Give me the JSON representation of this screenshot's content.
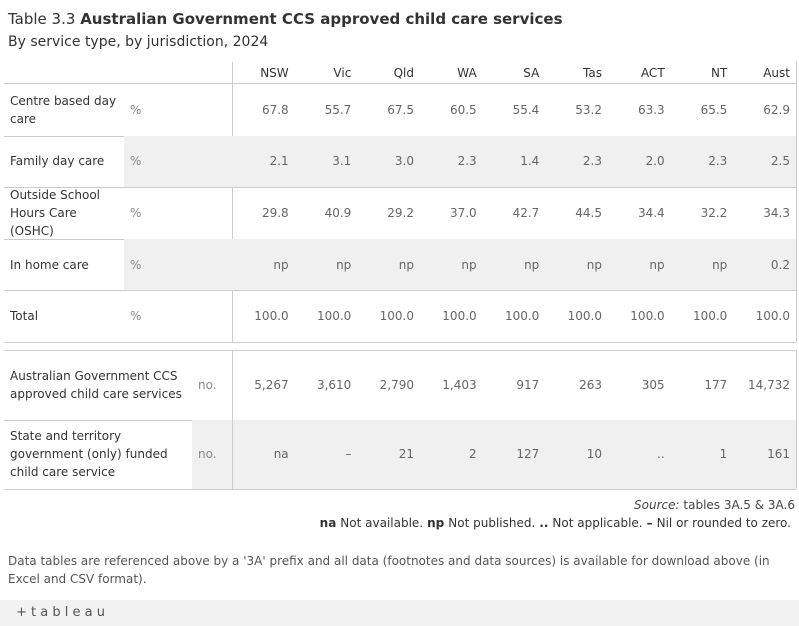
{
  "header": {
    "title_prefix": "Table 3.3",
    "title": "Australian Government CCS approved child care services",
    "subtitle": "By service type, by jurisdiction, 2024"
  },
  "table": {
    "columns": [
      "NSW",
      "Vic",
      "Qld",
      "WA",
      "SA",
      "Tas",
      "ACT",
      "NT",
      "Aust"
    ],
    "sections": [
      {
        "rows": [
          {
            "label": "Centre based day care",
            "unit": "%",
            "values": [
              "67.8",
              "55.7",
              "67.5",
              "60.5",
              "55.4",
              "53.2",
              "63.3",
              "65.5",
              "62.9"
            ]
          },
          {
            "label": "Family day care",
            "unit": "%",
            "values": [
              "2.1",
              "3.1",
              "3.0",
              "2.3",
              "1.4",
              "2.3",
              "2.0",
              "2.3",
              "2.5"
            ]
          },
          {
            "label": "Outside School Hours Care (OSHC)",
            "unit": "%",
            "values": [
              "29.8",
              "40.9",
              "29.2",
              "37.0",
              "42.7",
              "44.5",
              "34.4",
              "32.2",
              "34.3"
            ]
          },
          {
            "label": "In home care",
            "unit": "%",
            "values": [
              "np",
              "np",
              "np",
              "np",
              "np",
              "np",
              "np",
              "np",
              "0.2"
            ]
          },
          {
            "label": "Total",
            "unit": "%",
            "values": [
              "100.0",
              "100.0",
              "100.0",
              "100.0",
              "100.0",
              "100.0",
              "100.0",
              "100.0",
              "100.0"
            ]
          }
        ]
      },
      {
        "rows": [
          {
            "label": "Australian Government CCS approved child care services",
            "unit": "no.",
            "values": [
              "5,267",
              "3,610",
              "2,790",
              "1,403",
              "917",
              "263",
              "305",
              "177",
              "14,732"
            ]
          },
          {
            "label": "State and territory government (only) funded child care service",
            "unit": "no.",
            "values": [
              "na",
              "–",
              "21",
              "2",
              "127",
              "10",
              "..",
              "1",
              "161"
            ]
          }
        ]
      }
    ]
  },
  "source": {
    "label": "Source:",
    "text": "tables 3A.5 & 3A.6"
  },
  "footnotes": [
    {
      "abbr": "na",
      "text": "Not available."
    },
    {
      "abbr": "np",
      "text": "Not published."
    },
    {
      "abbr": "..",
      "text": "Not applicable."
    },
    {
      "abbr": "–",
      "text": "Nil or rounded to zero."
    }
  ],
  "note": "Data tables are referenced above by a '3A' prefix and all data (footnotes and data sources) is available for download above (in Excel and CSV format).",
  "footer": {
    "brand": "+ t a b l e a u"
  }
}
